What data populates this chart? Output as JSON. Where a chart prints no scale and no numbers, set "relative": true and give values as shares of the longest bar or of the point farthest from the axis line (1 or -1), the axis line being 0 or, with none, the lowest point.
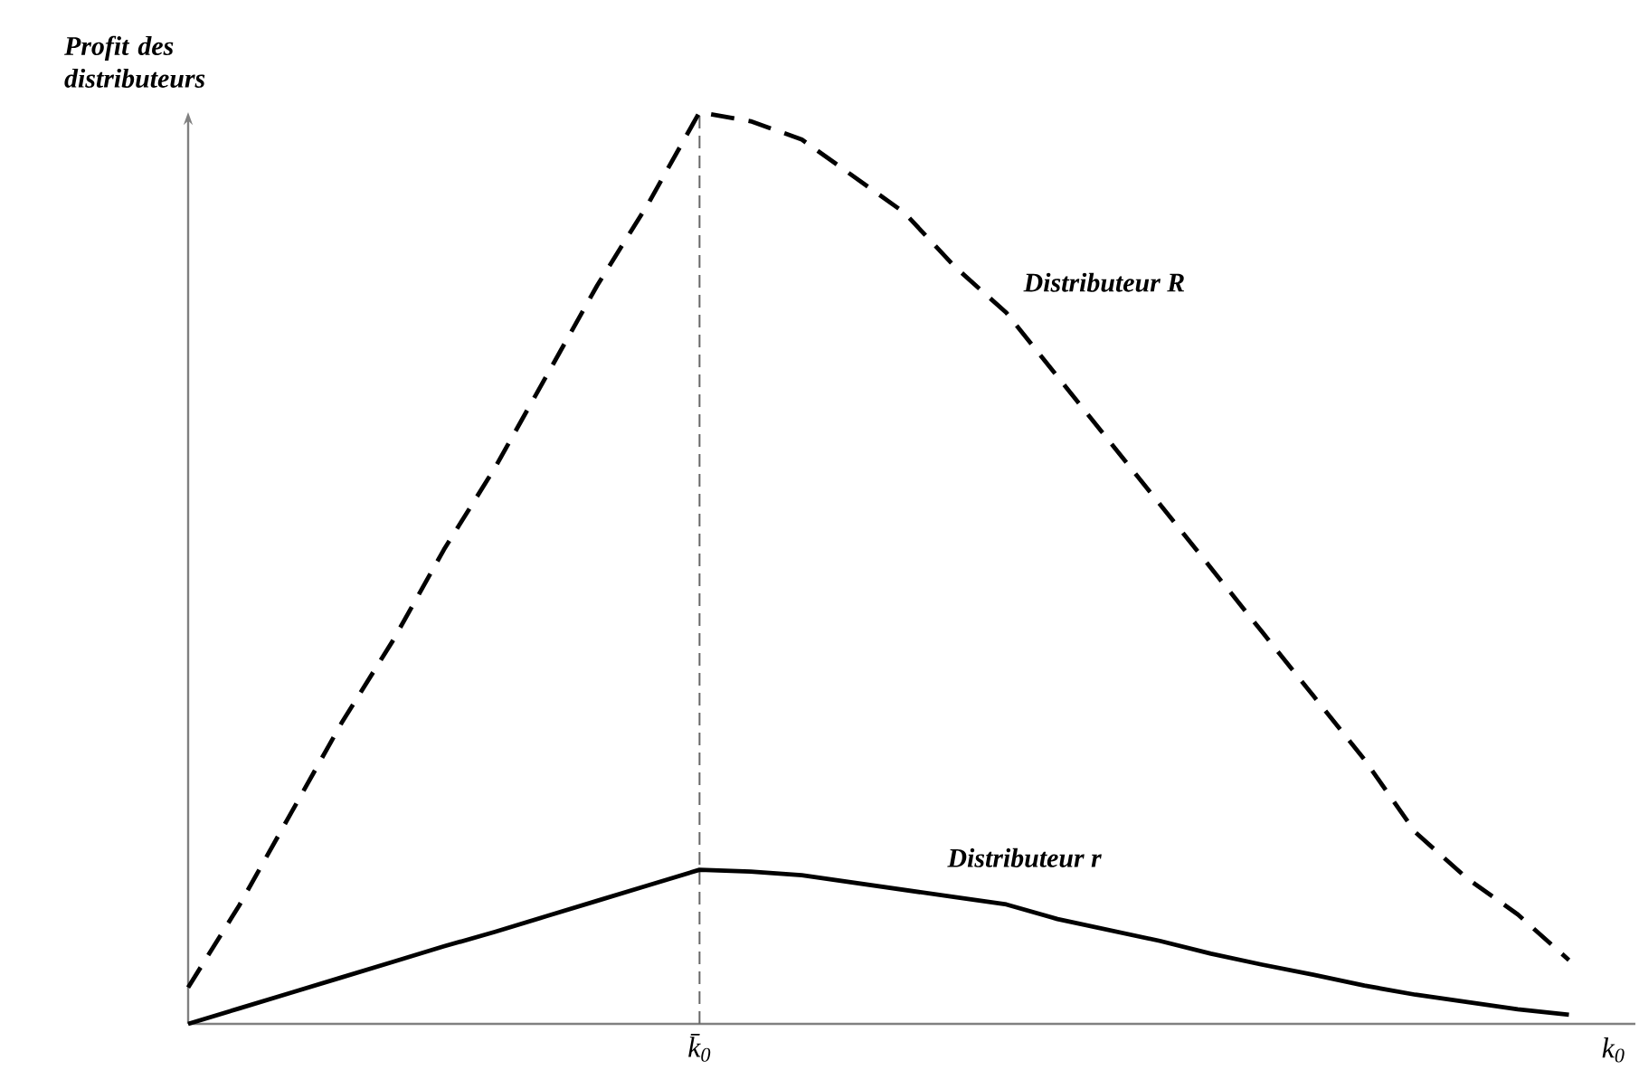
{
  "chart_data": {
    "type": "line",
    "relative": true,
    "ylabel": "Profit des distributeurs",
    "xlabel": "k$_{0}$",
    "categories": [
      null,
      null,
      null,
      null,
      null,
      null,
      null,
      null,
      null,
      null,
      null,
      null,
      null,
      null,
      null,
      null,
      null,
      null,
      null,
      null,
      null,
      null,
      null,
      null,
      null,
      null,
      null,
      null
    ],
    "series": [
      {
        "name": "Distributeur R",
        "color": "#000000",
        "line_style": "dashed",
        "values": [
          0.04,
          0.13,
          0.23,
          0.33,
          0.42,
          0.52,
          0.61,
          0.71,
          0.81,
          0.9,
          1,
          0.99,
          0.97,
          0.93,
          0.89,
          0.83,
          0.78,
          0.71,
          0.64,
          0.57,
          0.5,
          0.43,
          0.36,
          0.29,
          0.21,
          0.16,
          0.12,
          0.07
        ]
      },
      {
        "name": "Distributeur r",
        "color": "#000000",
        "line_style": "solid",
        "values": [
          0,
          0.017,
          0.034,
          0.051,
          0.068,
          0.085,
          0.101,
          0.118,
          0.135,
          0.152,
          0.169,
          0.167,
          0.163,
          0.155,
          0.147,
          0.139,
          0.131,
          0.115,
          0.103,
          0.091,
          0.077,
          0.065,
          0.054,
          0.042,
          0.032,
          0.024,
          0.016,
          0.01
        ]
      }
    ],
    "annotations": [
      "k̄$_{0}$"
    ]
  }
}
